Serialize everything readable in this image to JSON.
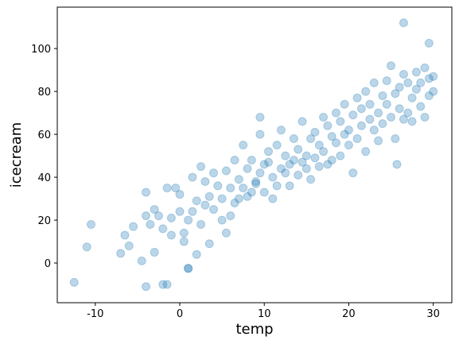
{
  "chart_data": {
    "type": "scatter",
    "xlabel": "temp",
    "ylabel": "icecream",
    "color": "#1f77b4",
    "xlim": [
      -14.5,
      32.2
    ],
    "ylim": [
      -18.5,
      119.3
    ],
    "xticks": [
      -10,
      0,
      10,
      20,
      30
    ],
    "yticks": [
      0,
      20,
      40,
      60,
      80,
      100
    ],
    "x": [
      -12.5,
      -10.5,
      -11,
      -7,
      -6.5,
      -6,
      -5.5,
      -4.5,
      -4,
      -4,
      -4,
      -3.5,
      -3,
      -3,
      -2.5,
      -2,
      -1.5,
      -1.5,
      -1,
      -1,
      -0.5,
      0,
      0,
      0.5,
      0.5,
      1,
      1,
      1.5,
      1.5,
      2,
      2,
      2.5,
      2.5,
      3,
      3,
      3.5,
      3.5,
      4,
      4,
      4.5,
      5,
      5,
      5.5,
      5.5,
      6,
      6,
      6.5,
      6.5,
      7,
      7,
      7.5,
      7.5,
      8,
      8,
      8.5,
      8.5,
      9,
      9,
      9.5,
      9.5,
      10,
      10,
      10.5,
      10.5,
      11,
      11,
      11.5,
      11.5,
      12,
      12,
      12.5,
      12.5,
      13,
      13,
      13.5,
      13.5,
      14,
      14,
      14.5,
      14.5,
      15,
      15,
      15.5,
      15.5,
      16,
      16,
      16.5,
      16.5,
      17,
      17,
      17.5,
      17.5,
      18,
      18,
      18.5,
      18.5,
      19,
      19,
      19.5,
      19.5,
      20,
      20,
      20.5,
      20.5,
      21,
      21,
      21.5,
      21.5,
      22,
      22,
      22.5,
      22.5,
      23,
      23,
      23.5,
      23.5,
      24,
      24,
      24.5,
      24.5,
      25,
      25,
      25.5,
      25.5,
      26,
      26,
      26.5,
      26.5,
      27,
      27,
      27.5,
      27.5,
      28,
      28,
      28.5,
      28.5,
      29,
      29,
      29.5,
      29.5,
      30,
      30,
      25.7,
      26.5,
      29.5,
      -2,
      1,
      9.5
    ],
    "values": [
      -9,
      18,
      7.5,
      4.5,
      13,
      8,
      17,
      1,
      22,
      33,
      -11,
      18,
      5,
      25,
      22,
      16,
      -10,
      35,
      13,
      21,
      35,
      24,
      32,
      10,
      14,
      -2.5,
      20,
      24,
      40,
      4,
      29,
      18,
      45,
      27,
      38,
      9,
      31,
      25,
      42,
      36,
      20,
      30,
      14,
      43,
      35,
      22,
      28,
      48,
      30,
      39,
      35,
      55,
      44,
      31,
      48,
      33,
      38,
      37,
      42,
      60,
      33,
      46,
      47,
      52,
      40,
      30,
      55,
      36,
      44,
      62,
      42,
      50,
      46,
      36,
      48,
      58,
      41,
      53,
      47,
      66,
      50,
      44,
      58,
      39,
      49,
      61,
      45,
      55,
      68,
      52,
      46,
      64,
      59,
      48,
      56,
      70,
      50,
      66,
      60,
      74,
      62,
      55,
      69,
      42,
      77,
      58,
      72,
      64,
      80,
      52,
      74,
      67,
      62,
      84,
      70,
      57,
      78,
      65,
      74,
      85,
      68,
      92,
      58,
      79,
      72,
      82,
      67,
      88,
      70,
      84,
      77,
      66,
      81,
      89,
      73,
      84,
      68,
      91,
      78,
      86,
      80,
      87,
      46,
      112,
      102.5,
      -10,
      -2.5,
      68
    ]
  }
}
